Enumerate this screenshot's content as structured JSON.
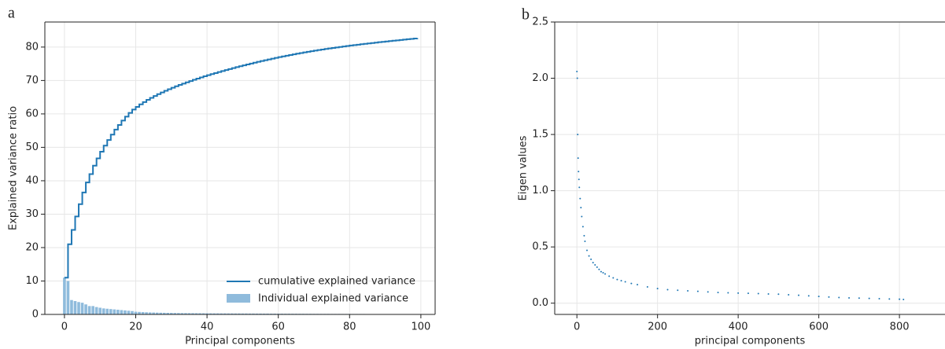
{
  "chart_data": [
    {
      "type": "bar-step",
      "panel_label": "a",
      "xlabel": "Principal components",
      "ylabel": "Explained variance ratio",
      "xlim": [
        -5.5,
        104
      ],
      "xticks": [
        0,
        20,
        40,
        60,
        80,
        100
      ],
      "ylim": [
        0,
        87.5
      ],
      "yticks": [
        0,
        10,
        20,
        30,
        40,
        50,
        60,
        70,
        80
      ],
      "grid": true,
      "legend": "lower right",
      "x": [
        0,
        1,
        2,
        3,
        4,
        5,
        6,
        7,
        8,
        9,
        10,
        11,
        12,
        13,
        14,
        15,
        16,
        17,
        18,
        19,
        20,
        21,
        22,
        23,
        24,
        25,
        26,
        27,
        28,
        29,
        30,
        31,
        32,
        33,
        34,
        35,
        36,
        37,
        38,
        39,
        40,
        41,
        42,
        43,
        44,
        45,
        46,
        47,
        48,
        49,
        50,
        51,
        52,
        53,
        54,
        55,
        56,
        57,
        58,
        59,
        60,
        61,
        62,
        63,
        64,
        65,
        66,
        67,
        68,
        69,
        70,
        71,
        72,
        73,
        74,
        75,
        76,
        77,
        78,
        79,
        80,
        81,
        82,
        83,
        84,
        85,
        86,
        87,
        88,
        89,
        90,
        91,
        92,
        93,
        94,
        95,
        96,
        97,
        98,
        99
      ],
      "series": [
        {
          "name": "cumulative explained variance",
          "kind": "step",
          "color": "#1f77b4",
          "values": [
            11,
            21,
            25.3,
            29.3,
            33,
            36.5,
            39.5,
            42,
            44.5,
            46.7,
            48.7,
            50.5,
            52.2,
            53.8,
            55.3,
            56.7,
            58,
            59.2,
            60.3,
            61.3,
            62.1,
            62.85,
            63.55,
            64.2,
            64.8,
            65.37,
            65.91,
            66.42,
            66.91,
            67.38,
            67.83,
            68.26,
            68.67,
            69.07,
            69.46,
            69.84,
            70.21,
            70.57,
            70.92,
            71.26,
            71.59,
            71.91,
            72.22,
            72.53,
            72.83,
            73.13,
            73.42,
            73.71,
            73.99,
            74.27,
            74.54,
            74.81,
            75.07,
            75.33,
            75.58,
            75.83,
            76.07,
            76.31,
            76.54,
            76.77,
            76.99,
            77.21,
            77.42,
            77.63,
            77.83,
            78.03,
            78.22,
            78.41,
            78.59,
            78.77,
            78.94,
            79.11,
            79.27,
            79.43,
            79.59,
            79.74,
            79.89,
            80.04,
            80.18,
            80.32,
            80.46,
            80.59,
            80.72,
            80.85,
            80.98,
            81.1,
            81.22,
            81.34,
            81.46,
            81.57,
            81.68,
            81.79,
            81.9,
            82.01,
            82.12,
            82.23,
            82.34,
            82.45,
            82.56,
            82.67
          ]
        },
        {
          "name": "Individual explained variance",
          "kind": "bar",
          "color": "#8fbbdc",
          "values": [
            11,
            10,
            4.3,
            4,
            3.7,
            3.5,
            3,
            2.5,
            2.5,
            2.2,
            2,
            1.8,
            1.7,
            1.6,
            1.5,
            1.4,
            1.3,
            1.2,
            1.1,
            1,
            0.8,
            0.75,
            0.7,
            0.65,
            0.6,
            0.57,
            0.54,
            0.51,
            0.49,
            0.47,
            0.45,
            0.43,
            0.41,
            0.4,
            0.39,
            0.38,
            0.37,
            0.36,
            0.35,
            0.34,
            0.33,
            0.32,
            0.31,
            0.31,
            0.3,
            0.3,
            0.29,
            0.29,
            0.28,
            0.28,
            0.27,
            0.27,
            0.26,
            0.26,
            0.25,
            0.25,
            0.24,
            0.24,
            0.23,
            0.23,
            0.22,
            0.22,
            0.21,
            0.21,
            0.2,
            0.2,
            0.19,
            0.19,
            0.18,
            0.18,
            0.17,
            0.17,
            0.16,
            0.16,
            0.16,
            0.15,
            0.15,
            0.15,
            0.14,
            0.14,
            0.14,
            0.13,
            0.13,
            0.13,
            0.13,
            0.12,
            0.12,
            0.12,
            0.12,
            0.11,
            0.11,
            0.11,
            0.11,
            0.11,
            0.11,
            0.11,
            0.11,
            0.11,
            0.11,
            0.11
          ]
        }
      ]
    },
    {
      "type": "scatter",
      "panel_label": "b",
      "xlabel": "principal components",
      "ylabel": "Eigen values",
      "xlim": [
        -55,
        913
      ],
      "xticks": [
        0,
        200,
        400,
        600,
        800
      ],
      "ylim": [
        -0.1,
        2.5
      ],
      "yticks": [
        0.0,
        0.5,
        1.0,
        1.5,
        2.0,
        2.5
      ],
      "grid": true,
      "color": "#1f77b4",
      "x": [
        0,
        1,
        2,
        3,
        4,
        5,
        6,
        8,
        10,
        12,
        15,
        18,
        20,
        25,
        30,
        35,
        40,
        45,
        50,
        55,
        60,
        65,
        70,
        80,
        90,
        100,
        110,
        120,
        135,
        150,
        175,
        200,
        225,
        250,
        275,
        300,
        325,
        350,
        375,
        400,
        425,
        450,
        475,
        500,
        525,
        550,
        575,
        600,
        625,
        650,
        675,
        700,
        725,
        750,
        775,
        800,
        810
      ],
      "values": [
        2.06,
        2.0,
        1.5,
        1.29,
        1.17,
        1.1,
        1.03,
        0.93,
        0.85,
        0.77,
        0.68,
        0.6,
        0.55,
        0.47,
        0.42,
        0.39,
        0.36,
        0.34,
        0.32,
        0.3,
        0.28,
        0.27,
        0.26,
        0.24,
        0.225,
        0.21,
        0.2,
        0.19,
        0.175,
        0.165,
        0.145,
        0.13,
        0.12,
        0.115,
        0.11,
        0.105,
        0.1,
        0.095,
        0.092,
        0.09,
        0.088,
        0.085,
        0.082,
        0.08,
        0.075,
        0.07,
        0.065,
        0.06,
        0.055,
        0.05,
        0.047,
        0.045,
        0.042,
        0.04,
        0.037,
        0.035,
        0.033
      ]
    }
  ]
}
